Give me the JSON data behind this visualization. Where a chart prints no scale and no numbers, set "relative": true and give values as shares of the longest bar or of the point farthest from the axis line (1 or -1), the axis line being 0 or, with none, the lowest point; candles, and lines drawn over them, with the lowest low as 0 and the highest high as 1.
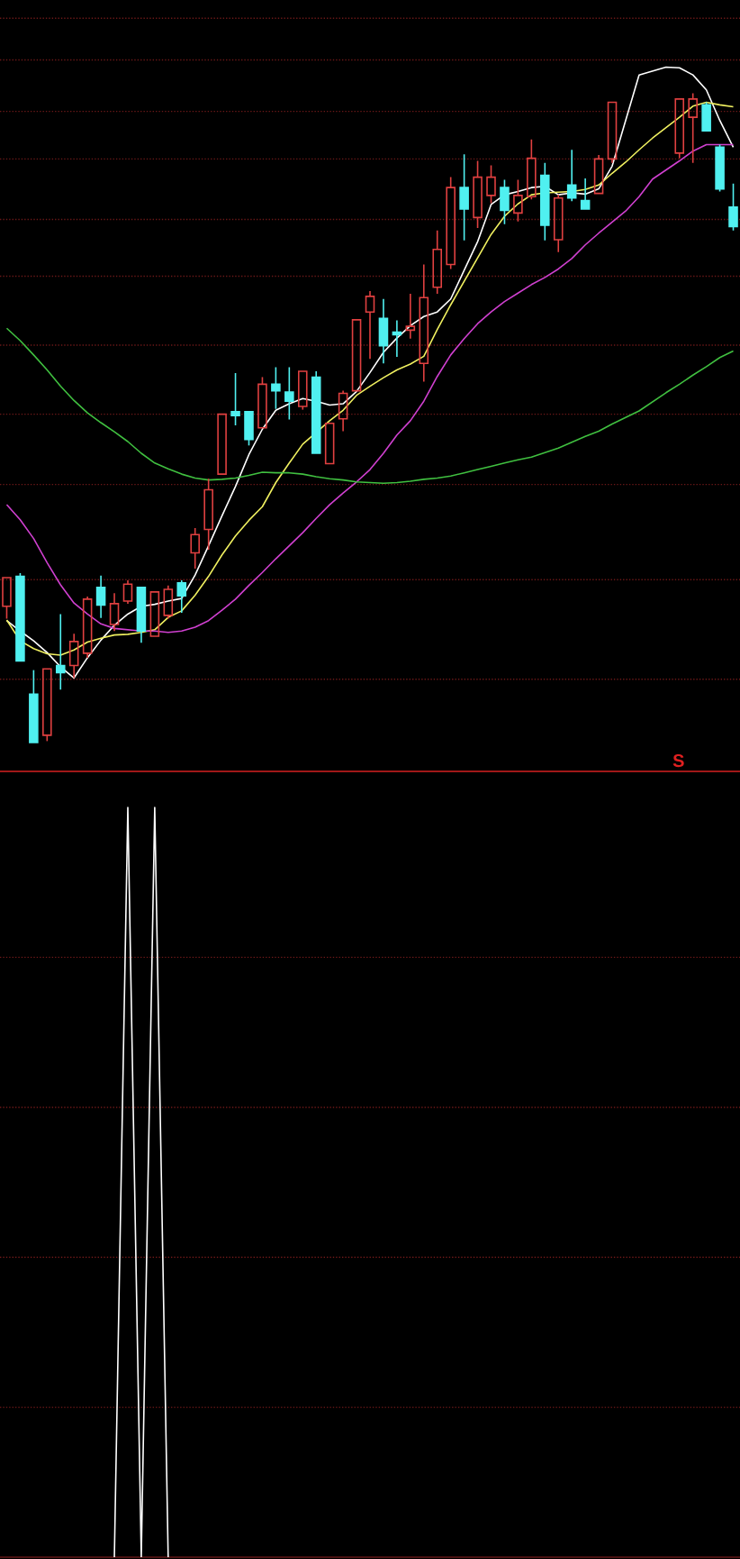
{
  "chart_data": [
    {
      "type": "candlestick",
      "relative": true,
      "categories": [
        null,
        null,
        null,
        null,
        null,
        null,
        null,
        null,
        null,
        null,
        null,
        null,
        null,
        null,
        null,
        null,
        null,
        null,
        null,
        null,
        null,
        null,
        null,
        null,
        null,
        null,
        null,
        null,
        null,
        null,
        null,
        null,
        null,
        null,
        null,
        null,
        null,
        null,
        null,
        null,
        null,
        null,
        null,
        null,
        null,
        null,
        null,
        null,
        null,
        null,
        null,
        null,
        null,
        null,
        null
      ],
      "ohlc": [
        [
          0.212,
          0.256,
          0.193,
          0.256
        ],
        [
          0.258,
          0.263,
          0.128,
          0.128
        ],
        [
          0.077,
          0.114,
          0,
          0.003
        ],
        [
          0.014,
          0.116,
          0.005,
          0.116
        ],
        [
          0.121,
          0.2,
          0.084,
          0.11
        ],
        [
          0.121,
          0.17,
          0.102,
          0.158
        ],
        [
          0.14,
          0.227,
          0.133,
          0.223
        ],
        [
          0.241,
          0.259,
          0.194,
          0.214
        ],
        [
          0.184,
          0.232,
          0.174,
          0.216
        ],
        [
          0.22,
          0.252,
          0.216,
          0.246
        ],
        [
          0.241,
          0.244,
          0.156,
          0.174
        ],
        [
          0.166,
          0.238,
          0.165,
          0.234
        ],
        [
          0.198,
          0.244,
          0.193,
          0.238
        ],
        [
          0.248,
          0.252,
          0.202,
          0.228
        ],
        [
          0.294,
          0.332,
          0.27,
          0.322
        ],
        [
          0.33,
          0.408,
          0.299,
          0.391
        ],
        [
          0.415,
          0.507,
          0.412,
          0.507
        ],
        [
          0.511,
          0.57,
          0.49,
          0.505
        ],
        [
          0.511,
          0.511,
          0.459,
          0.468
        ],
        [
          0.486,
          0.564,
          0.483,
          0.553
        ],
        [
          0.553,
          0.579,
          0.515,
          0.543
        ],
        [
          0.541,
          0.579,
          0.499,
          0.527
        ],
        [
          0.519,
          0.576,
          0.514,
          0.573
        ],
        [
          0.564,
          0.573,
          0.446,
          0.447
        ],
        [
          0.431,
          0.495,
          0.428,
          0.493
        ],
        [
          0.5,
          0.543,
          0.481,
          0.539
        ],
        [
          0.543,
          0.653,
          0.542,
          0.652
        ],
        [
          0.664,
          0.696,
          0.592,
          0.688
        ],
        [
          0.654,
          0.684,
          0.585,
          0.612
        ],
        [
          0.633,
          0.651,
          0.595,
          0.629
        ],
        [
          0.636,
          0.692,
          0.623,
          0.642
        ],
        [
          0.585,
          0.737,
          0.557,
          0.686
        ],
        [
          0.702,
          0.789,
          0.692,
          0.76
        ],
        [
          0.737,
          0.871,
          0.73,
          0.855
        ],
        [
          0.855,
          0.906,
          0.774,
          0.822
        ],
        [
          0.809,
          0.896,
          0.793,
          0.871
        ],
        [
          0.843,
          0.889,
          0.831,
          0.871
        ],
        [
          0.855,
          0.867,
          0.799,
          0.82
        ],
        [
          0.816,
          0.867,
          0.803,
          0.843
        ],
        [
          0.841,
          0.929,
          0.837,
          0.9
        ],
        [
          0.874,
          0.893,
          0.774,
          0.797
        ],
        [
          0.775,
          0.844,
          0.756,
          0.839
        ],
        [
          0.859,
          0.913,
          0.834,
          0.839
        ],
        [
          0.835,
          0.869,
          0.819,
          0.822
        ],
        [
          0.846,
          0.905,
          0.844,
          0.899
        ],
        [
          0.899,
          0.986,
          0.893,
          0.986
        ],
        null,
        null,
        null,
        null,
        [
          0.908,
          0.991,
          0.9,
          0.991
        ],
        [
          0.963,
          1,
          0.893,
          0.991
        ],
        [
          0.982,
          0.986,
          0.941,
          0.942
        ],
        [
          0.917,
          0.921,
          0.849,
          0.853
        ],
        [
          0.825,
          0.861,
          0.789,
          0.795
        ]
      ],
      "colors": [
        "#e04040",
        "#50f0f0",
        "#50f0f0",
        "#e04040",
        "#50f0f0",
        "#e04040",
        "#e04040",
        "#50f0f0",
        "#e04040",
        "#e04040",
        "#50f0f0",
        "#e04040",
        "#e04040",
        "#50f0f0",
        "#e04040",
        "#e04040",
        "#e04040",
        "#50f0f0",
        "#50f0f0",
        "#e04040",
        "#50f0f0",
        "#50f0f0",
        "#e04040",
        "#50f0f0",
        "#e04040",
        "#e04040",
        "#e04040",
        "#e04040",
        "#50f0f0",
        "#50f0f0",
        "#e04040",
        "#e04040",
        "#e04040",
        "#e04040",
        "#50f0f0",
        "#e04040",
        "#e04040",
        "#50f0f0",
        "#e04040",
        "#e04040",
        "#50f0f0",
        "#e04040",
        "#50f0f0",
        "#50f0f0",
        "#e04040",
        "#e04040",
        null,
        null,
        null,
        null,
        "#e04040",
        "#e04040",
        "#50f0f0",
        "#50f0f0",
        "#50f0f0"
      ],
      "series": [
        {
          "type": "line",
          "color": "#ffffff",
          "values": [
            0.19,
            0.174,
            0.159,
            0.141,
            0.119,
            0.102,
            0.133,
            0.16,
            0.183,
            0.2,
            0.212,
            0.215,
            0.22,
            0.224,
            0.26,
            0.305,
            0.351,
            0.396,
            0.445,
            0.484,
            0.513,
            0.523,
            0.531,
            0.527,
            0.521,
            0.523,
            0.542,
            0.571,
            0.602,
            0.624,
            0.643,
            0.657,
            0.664,
            0.684,
            0.728,
            0.772,
            0.829,
            0.844,
            0.849,
            0.855,
            0.857,
            0.844,
            0.847,
            0.845,
            0.853,
            0.888,
            0.958,
            1.028,
            1.034,
            1.04,
            1.039,
            1.028,
            1.005,
            0.958,
            0.917
          ]
        },
        {
          "type": "line",
          "color": "#f0f060",
          "values": [
            0.191,
            0.159,
            0.147,
            0.139,
            0.137,
            0.145,
            0.157,
            0.163,
            0.168,
            0.169,
            0.172,
            0.176,
            0.195,
            0.205,
            0.229,
            0.258,
            0.291,
            0.32,
            0.344,
            0.365,
            0.402,
            0.432,
            0.461,
            0.479,
            0.497,
            0.513,
            0.536,
            0.55,
            0.563,
            0.575,
            0.584,
            0.596,
            0.637,
            0.675,
            0.711,
            0.747,
            0.783,
            0.811,
            0.83,
            0.844,
            0.847,
            0.848,
            0.849,
            0.852,
            0.859,
            0.877,
            0.894,
            0.913,
            0.931,
            0.947,
            0.963,
            0.98,
            0.986,
            0.982,
            0.979
          ]
        },
        {
          "type": "line",
          "color": "#d040d0",
          "values": [
            0.368,
            0.345,
            0.316,
            0.279,
            0.245,
            0.217,
            0.2,
            0.185,
            0.178,
            0.176,
            0.174,
            0.174,
            0.172,
            0.174,
            0.18,
            0.19,
            0.206,
            0.223,
            0.244,
            0.264,
            0.285,
            0.305,
            0.325,
            0.347,
            0.368,
            0.386,
            0.403,
            0.422,
            0.447,
            0.475,
            0.497,
            0.527,
            0.565,
            0.598,
            0.623,
            0.646,
            0.664,
            0.68,
            0.693,
            0.706,
            0.717,
            0.73,
            0.746,
            0.767,
            0.785,
            0.802,
            0.819,
            0.841,
            0.868,
            0.882,
            0.896,
            0.911,
            0.921,
            0.921,
            0.921
          ]
        },
        {
          "type": "line",
          "color": "#40c040",
          "values": [
            0.639,
            0.62,
            0.598,
            0.575,
            0.55,
            0.528,
            0.509,
            0.494,
            0.48,
            0.465,
            0.447,
            0.432,
            0.423,
            0.415,
            0.409,
            0.406,
            0.407,
            0.409,
            0.413,
            0.418,
            0.417,
            0.417,
            0.415,
            0.411,
            0.408,
            0.406,
            0.403,
            0.402,
            0.401,
            0.402,
            0.404,
            0.407,
            0.409,
            0.412,
            0.417,
            0.422,
            0.427,
            0.432,
            0.437,
            0.441,
            0.448,
            0.455,
            0.464,
            0.473,
            0.481,
            0.492,
            0.502,
            0.512,
            0.526,
            0.54,
            0.553,
            0.567,
            0.58,
            0.594,
            0.604
          ]
        }
      ],
      "ref_lines": [
        {
          "axis": "y",
          "value": 0.1,
          "color": "#6a1818",
          "line_style": "dotted"
        },
        {
          "axis": "y",
          "value": 0.253,
          "color": "#6a1818",
          "line_style": "dotted"
        },
        {
          "axis": "y",
          "value": 0.399,
          "color": "#6a1818",
          "line_style": "dotted"
        },
        {
          "axis": "y",
          "value": 0.507,
          "color": "#6a1818",
          "line_style": "dotted"
        },
        {
          "axis": "y",
          "value": 0.613,
          "color": "#6a1818",
          "line_style": "dotted"
        },
        {
          "axis": "y",
          "value": 0.719,
          "color": "#6a1818",
          "line_style": "dotted"
        },
        {
          "axis": "y",
          "value": 0.806,
          "color": "#6a1818",
          "line_style": "dotted"
        },
        {
          "axis": "y",
          "value": 0.899,
          "color": "#6a1818",
          "line_style": "dotted"
        },
        {
          "axis": "y",
          "value": 0.972,
          "color": "#6a1818",
          "line_style": "dotted"
        },
        {
          "axis": "y",
          "value": 1.051,
          "color": "#6a1818",
          "line_style": "dotted"
        },
        {
          "axis": "y",
          "value": 1.115,
          "color": "#6a1818",
          "line_style": "dotted"
        }
      ],
      "annotations": [
        "S"
      ]
    },
    {
      "type": "line",
      "relative": true,
      "categories": [
        null,
        null,
        null,
        null,
        null,
        null,
        null,
        null,
        null,
        null,
        null,
        null,
        null,
        null,
        null,
        null,
        null,
        null,
        null,
        null,
        null,
        null,
        null,
        null,
        null,
        null,
        null,
        null,
        null,
        null,
        null,
        null,
        null,
        null,
        null,
        null,
        null,
        null,
        null,
        null,
        null,
        null,
        null,
        null,
        null,
        null,
        null,
        null,
        null,
        null,
        null,
        null,
        null,
        null,
        null
      ],
      "series": [
        {
          "color": "#ffffff",
          "values": [
            null,
            null,
            null,
            null,
            null,
            null,
            null,
            null,
            0,
            1,
            0,
            1,
            0,
            null,
            null,
            null,
            null,
            null,
            null,
            null,
            null,
            null,
            null,
            null,
            null,
            null,
            null,
            null,
            null,
            null,
            null,
            null,
            null,
            null,
            null,
            null,
            null,
            null,
            null,
            null,
            null,
            null,
            null,
            null,
            null,
            null,
            null,
            null,
            null,
            null,
            null,
            null,
            null,
            null,
            null
          ]
        }
      ],
      "ref_lines": [
        {
          "axis": "y",
          "value": 0.2,
          "color": "#6a1818",
          "line_style": "dotted"
        },
        {
          "axis": "y",
          "value": 0.4,
          "color": "#6a1818",
          "line_style": "dotted"
        },
        {
          "axis": "y",
          "value": 0.6,
          "color": "#6a1818",
          "line_style": "dotted"
        },
        {
          "axis": "y",
          "value": 0.8,
          "color": "#6a1818",
          "line_style": "dotted"
        }
      ]
    }
  ]
}
